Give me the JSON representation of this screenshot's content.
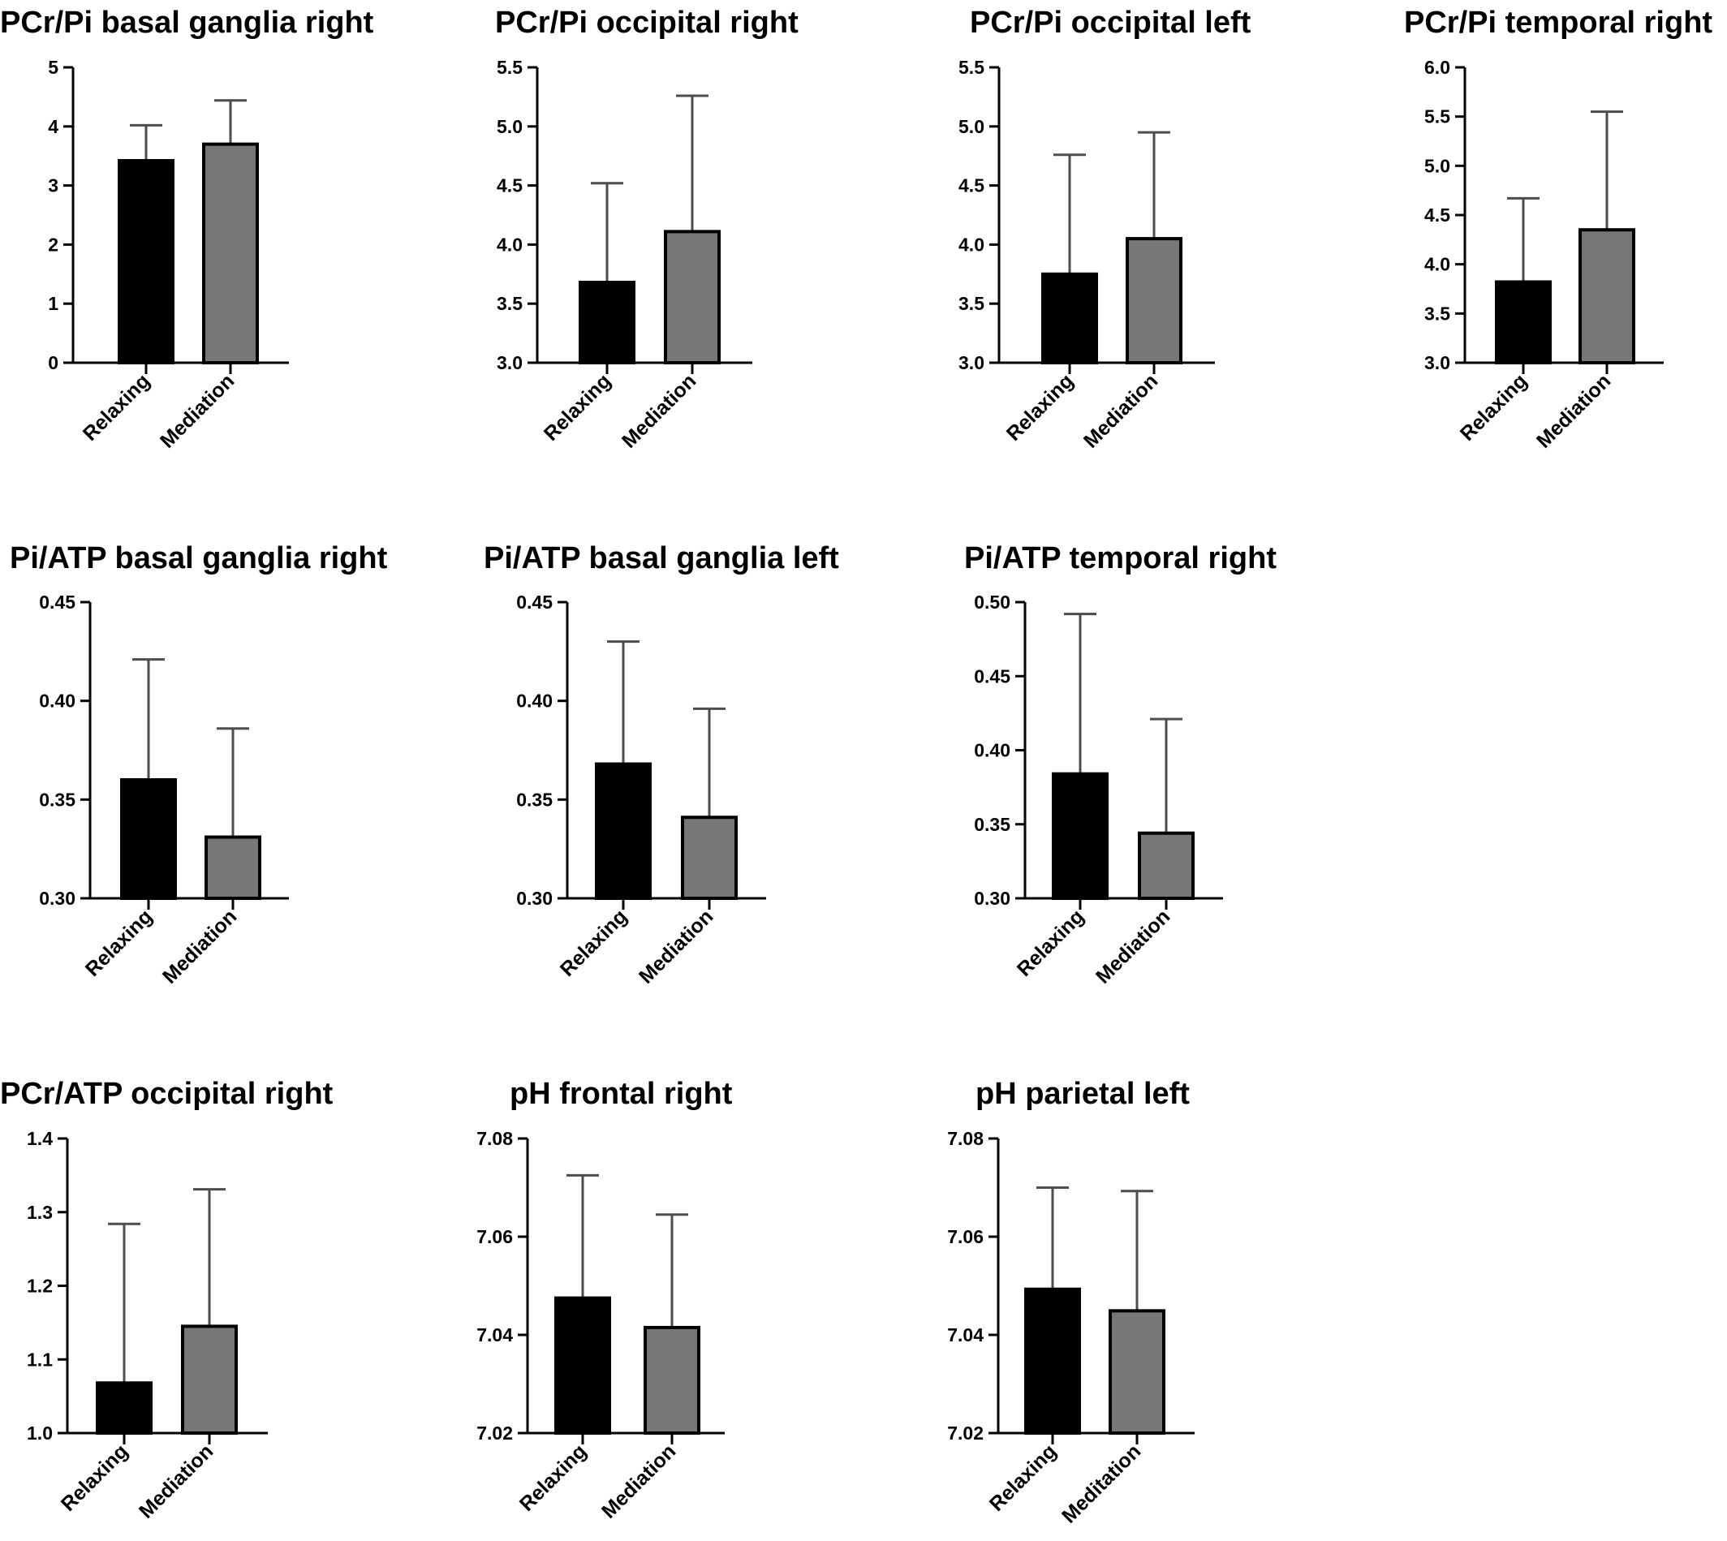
{
  "colors": {
    "relaxing_bar": "#000000",
    "mediation_bar": "#777777",
    "axis": "#000000",
    "error_bar": "#4d4d4d",
    "background": "#ffffff"
  },
  "chart_data": [
    {
      "type": "bar",
      "title": "PCr/Pi basal ganglia right",
      "categories": [
        "Relaxing",
        "Mediation"
      ],
      "values": [
        3.42,
        3.7
      ],
      "error_upper": [
        4.02,
        4.44
      ],
      "ylim": [
        0,
        5
      ],
      "yticks": [
        "0",
        "1",
        "2",
        "3",
        "4",
        "5"
      ],
      "grid": false
    },
    {
      "type": "bar",
      "title": "PCr/Pi occipital right",
      "categories": [
        "Relaxing",
        "Mediation"
      ],
      "values": [
        3.68,
        4.11
      ],
      "error_upper": [
        4.52,
        5.26
      ],
      "ylim": [
        3.0,
        5.5
      ],
      "yticks": [
        "3.0",
        "3.5",
        "4.0",
        "4.5",
        "5.0",
        "5.5"
      ],
      "grid": false
    },
    {
      "type": "bar",
      "title": "PCr/Pi occipital left",
      "categories": [
        "Relaxing",
        "Mediation"
      ],
      "values": [
        3.75,
        4.05
      ],
      "error_upper": [
        4.76,
        4.95
      ],
      "ylim": [
        3.0,
        5.5
      ],
      "yticks": [
        "3.0",
        "3.5",
        "4.0",
        "4.5",
        "5.0",
        "5.5"
      ],
      "grid": false
    },
    {
      "type": "bar",
      "title": "PCr/Pi temporal right",
      "categories": [
        "Relaxing",
        "Mediation"
      ],
      "values": [
        3.82,
        4.35
      ],
      "error_upper": [
        4.67,
        5.55
      ],
      "ylim": [
        3.0,
        6.0
      ],
      "yticks": [
        "3.0",
        "3.5",
        "4.0",
        "4.5",
        "5.0",
        "5.5",
        "6.0"
      ],
      "grid": false
    },
    {
      "type": "bar",
      "title": "Pi/ATP basal ganglia right",
      "categories": [
        "Relaxing",
        "Mediation"
      ],
      "values": [
        0.36,
        0.331
      ],
      "error_upper": [
        0.421,
        0.386
      ],
      "ylim": [
        0.3,
        0.45
      ],
      "yticks": [
        "0.30",
        "0.35",
        "0.40",
        "0.45"
      ],
      "grid": false
    },
    {
      "type": "bar",
      "title": "Pi/ATP basal ganglia left",
      "categories": [
        "Relaxing",
        "Mediation"
      ],
      "values": [
        0.368,
        0.341
      ],
      "error_upper": [
        0.43,
        0.396
      ],
      "ylim": [
        0.3,
        0.45
      ],
      "yticks": [
        "0.30",
        "0.35",
        "0.40",
        "0.45"
      ],
      "grid": false
    },
    {
      "type": "bar",
      "title": "Pi/ATP temporal right",
      "categories": [
        "Relaxing",
        "Mediation"
      ],
      "values": [
        0.384,
        0.344
      ],
      "error_upper": [
        0.492,
        0.421
      ],
      "ylim": [
        0.3,
        0.5
      ],
      "yticks": [
        "0.30",
        "0.35",
        "0.40",
        "0.45",
        "0.50"
      ],
      "grid": false
    },
    {
      "type": "bar",
      "title": "PCr/ATP occipital right",
      "categories": [
        "Relaxing",
        "Mediation"
      ],
      "values": [
        1.068,
        1.145
      ],
      "error_upper": [
        1.284,
        1.331
      ],
      "ylim": [
        1.0,
        1.4
      ],
      "yticks": [
        "1.0",
        "1.1",
        "1.2",
        "1.3",
        "1.4"
      ],
      "grid": false
    },
    {
      "type": "bar",
      "title": "pH frontal right",
      "categories": [
        "Relaxing",
        "Mediation"
      ],
      "values": [
        7.0475,
        7.0415
      ],
      "error_upper": [
        7.0725,
        7.0645
      ],
      "ylim": [
        7.02,
        7.08
      ],
      "yticks": [
        "7.02",
        "7.04",
        "7.06",
        "7.08"
      ],
      "grid": false
    },
    {
      "type": "bar",
      "title": "pH parietal left",
      "categories": [
        "Relaxing",
        "Meditation"
      ],
      "values": [
        7.0493,
        7.0449
      ],
      "error_upper": [
        7.07,
        7.0693
      ],
      "ylim": [
        7.02,
        7.08
      ],
      "yticks": [
        "7.02",
        "7.04",
        "7.06",
        "7.08"
      ],
      "grid": false
    }
  ]
}
